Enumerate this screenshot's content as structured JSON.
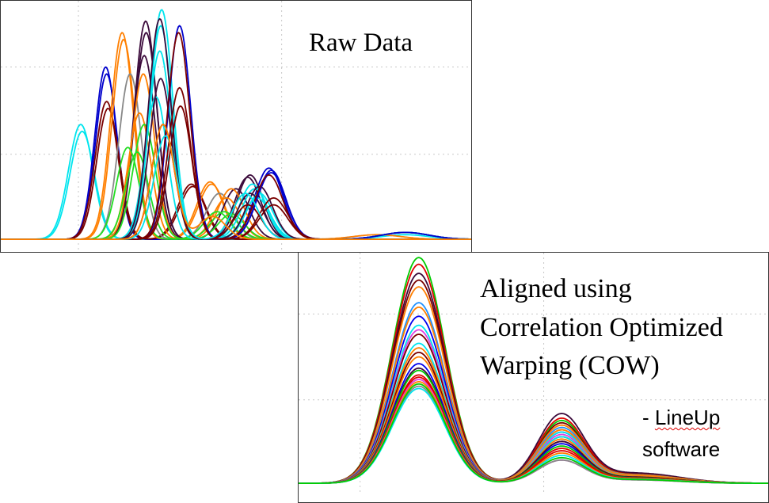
{
  "chart_data": [
    {
      "type": "line",
      "title": "Raw Data",
      "xlim": [
        0,
        100
      ],
      "ylim": [
        0,
        1
      ],
      "grid": true,
      "x_grid": [
        16.5,
        59.7
      ],
      "y_grid": [
        0.38,
        0.76
      ],
      "curve_model": "sum of gaussian peaks [center, height, sigma]",
      "series": [
        {
          "color": "#00e5ee",
          "peaks": [
            [
              17,
              0.5,
              2.6
            ],
            [
              86,
              0.02,
              5
            ]
          ]
        },
        {
          "color": "#00e5ee",
          "peaks": [
            [
              17.3,
              0.47,
              2.6
            ]
          ]
        },
        {
          "color": "#0000cc",
          "peaks": [
            [
              22.3,
              0.75,
              2.3
            ],
            [
              57,
              0.31,
              3
            ],
            [
              86,
              0.03,
              5
            ]
          ]
        },
        {
          "color": "#0000cc",
          "peaks": [
            [
              22.5,
              0.72,
              2.3
            ],
            [
              57.5,
              0.29,
              3
            ]
          ]
        },
        {
          "color": "#7a0000",
          "peaks": [
            [
              22.5,
              0.6,
              2.4
            ],
            [
              40.5,
              0.24,
              2.8
            ]
          ]
        },
        {
          "color": "#7a0000",
          "peaks": [
            [
              22.8,
              0.57,
              2.4
            ],
            [
              40.8,
              0.23,
              2.8
            ]
          ]
        },
        {
          "color": "#ff7f00",
          "peaks": [
            [
              25.8,
              0.9,
              2.4
            ],
            [
              44.5,
              0.25,
              2.8
            ],
            [
              80,
              0.02,
              5
            ]
          ]
        },
        {
          "color": "#ff7f00",
          "peaks": [
            [
              26.1,
              0.87,
              2.4
            ],
            [
              44.8,
              0.24,
              2.8
            ]
          ]
        },
        {
          "color": "#888888",
          "peaks": [
            [
              27.5,
              0.72,
              2.4
            ],
            [
              46.5,
              0.2,
              2.8
            ]
          ]
        },
        {
          "color": "#3b0a3b",
          "peaks": [
            [
              30.8,
              0.95,
              2.4
            ],
            [
              53,
              0.28,
              2.8
            ],
            [
              86,
              0.03,
              5
            ]
          ]
        },
        {
          "color": "#3b0a3b",
          "peaks": [
            [
              30.9,
              0.9,
              2.4
            ],
            [
              52.5,
              0.27,
              2.8
            ]
          ]
        },
        {
          "color": "#3b0a3b",
          "peaks": [
            [
              30.5,
              0.8,
              2.4
            ],
            [
              50,
              0.22,
              2.8
            ]
          ]
        },
        {
          "color": "#ff7f00",
          "peaks": [
            [
              30.3,
              0.72,
              2.4
            ],
            [
              49,
              0.22,
              2.8
            ]
          ]
        },
        {
          "color": "#ff7f00",
          "peaks": [
            [
              29.5,
              0.55,
              2.4
            ],
            [
              48,
              0.18,
              2.8
            ]
          ]
        },
        {
          "color": "#22dd22",
          "peaks": [
            [
              27,
              0.4,
              2.4
            ],
            [
              46,
              0.12,
              2.8
            ]
          ]
        },
        {
          "color": "#22dd22",
          "peaks": [
            [
              29,
              0.38,
              2.4
            ],
            [
              47.5,
              0.12,
              2.8
            ]
          ]
        },
        {
          "color": "#22dd22",
          "peaks": [
            [
              30.5,
              0.5,
              2.4
            ],
            [
              49,
              0.11,
              2.8
            ]
          ]
        },
        {
          "color": "#00e5ee",
          "peaks": [
            [
              34.2,
              1.0,
              2.4
            ],
            [
              53.5,
              0.24,
              2.8
            ],
            [
              86,
              0.03,
              5
            ]
          ]
        },
        {
          "color": "#00e5ee",
          "peaks": [
            [
              34,
              0.93,
              2.4
            ],
            [
              54,
              0.22,
              2.8
            ]
          ]
        },
        {
          "color": "#00e5ee",
          "peaks": [
            [
              33.8,
              0.82,
              2.4
            ],
            [
              55,
              0.2,
              2.8
            ]
          ]
        },
        {
          "color": "#00e5ee",
          "peaks": [
            [
              33,
              0.62,
              2.4
            ],
            [
              54.5,
              0.18,
              2.8
            ]
          ]
        },
        {
          "color": "#3b0a3b",
          "peaks": [
            [
              33.8,
              0.96,
              2.4
            ],
            [
              55,
              0.23,
              2.8
            ]
          ]
        },
        {
          "color": "#3b0a3b",
          "peaks": [
            [
              34,
              0.7,
              2.4
            ],
            [
              53,
              0.2,
              2.8
            ]
          ]
        },
        {
          "color": "#7a0000",
          "peaks": [
            [
              34.5,
              0.5,
              2.4
            ],
            [
              52.5,
              0.15,
              2.8
            ]
          ]
        },
        {
          "color": "#0000cc",
          "peaks": [
            [
              38,
              0.93,
              2.4
            ],
            [
              57.5,
              0.3,
              3
            ],
            [
              86,
              0.03,
              5
            ]
          ]
        },
        {
          "color": "#7a0000",
          "peaks": [
            [
              37.8,
              0.9,
              2.4
            ],
            [
              57,
              0.28,
              3
            ]
          ]
        },
        {
          "color": "#7a0000",
          "peaks": [
            [
              38,
              0.66,
              2.4
            ],
            [
              58,
              0.18,
              3
            ]
          ]
        },
        {
          "color": "#7a0000",
          "peaks": [
            [
              38.2,
              0.58,
              2.4
            ],
            [
              58,
              0.15,
              3
            ]
          ]
        },
        {
          "color": "#00e5ee",
          "peaks": [
            [
              35,
              0.45,
              2.4
            ],
            [
              52,
              0.2,
              2.8
            ]
          ]
        },
        {
          "color": "#ff7f00",
          "peaks": [
            [
              34.5,
              0.5,
              2.4
            ],
            [
              45,
              0.1,
              2.8
            ]
          ]
        }
      ]
    },
    {
      "type": "line",
      "title": "Aligned using Correlation Optimized Warping (COW)",
      "xlim": [
        0,
        100
      ],
      "ylim": [
        0,
        1
      ],
      "grid": true,
      "x_grid": [
        13.1,
        52.2
      ],
      "y_grid": [
        0.76,
        0.38
      ],
      "main_peak": {
        "center": 25.6,
        "sigma": 5.6
      },
      "second_peak": {
        "center": 55.9,
        "sigma": 4.9
      },
      "tail": {
        "center": 72,
        "sigma": 9
      },
      "series": [
        {
          "color": "#00cc00",
          "main": 1.0,
          "second": 0.27
        },
        {
          "color": "#e00000",
          "main": 0.97,
          "second": 0.28
        },
        {
          "color": "#3b0a3b",
          "main": 0.93,
          "second": 0.3
        },
        {
          "color": "#7a0000",
          "main": 0.9,
          "second": 0.26
        },
        {
          "color": "#ff7f00",
          "main": 0.87,
          "second": 0.25
        },
        {
          "color": "#1e90ff",
          "main": 0.8,
          "second": 0.24
        },
        {
          "color": "#ff7f00",
          "main": 0.78,
          "second": 0.23
        },
        {
          "color": "#0000ee",
          "main": 0.74,
          "second": 0.22
        },
        {
          "color": "#00e5ee",
          "main": 0.7,
          "second": 0.22
        },
        {
          "color": "#e040e0",
          "main": 0.68,
          "second": 0.21
        },
        {
          "color": "#7a0000",
          "main": 0.66,
          "second": 0.2
        },
        {
          "color": "#00e5ee",
          "main": 0.62,
          "second": 0.2
        },
        {
          "color": "#ff7f00",
          "main": 0.6,
          "second": 0.23
        },
        {
          "color": "#7a0000",
          "main": 0.58,
          "second": 0.18
        },
        {
          "color": "#ff7f00",
          "main": 0.56,
          "second": 0.19
        },
        {
          "color": "#0000ee",
          "main": 0.53,
          "second": 0.17
        },
        {
          "color": "#3b0a3b",
          "main": 0.51,
          "second": 0.18
        },
        {
          "color": "#00cc00",
          "main": 0.5,
          "second": 0.16
        },
        {
          "color": "#e00000",
          "main": 0.48,
          "second": 0.15
        },
        {
          "color": "#e00000",
          "main": 0.47,
          "second": 0.14
        },
        {
          "color": "#e040e0",
          "main": 0.46,
          "second": 0.1
        },
        {
          "color": "#ff7f00",
          "main": 0.45,
          "second": 0.13
        },
        {
          "color": "#888888",
          "main": 0.43,
          "second": 0.1
        },
        {
          "color": "#00e5ee",
          "main": 0.42,
          "second": 0.12
        },
        {
          "color": "#00cc00",
          "main": 0.44,
          "second": 0.11
        }
      ]
    }
  ],
  "labels": {
    "raw": "Raw Data",
    "aligned_line1": "Aligned using",
    "aligned_line2": "Correlation Optimized",
    "aligned_line3": "Warping (COW)",
    "software_prefix": "- ",
    "software_name": "LineUp",
    "software_suffix": "software"
  }
}
